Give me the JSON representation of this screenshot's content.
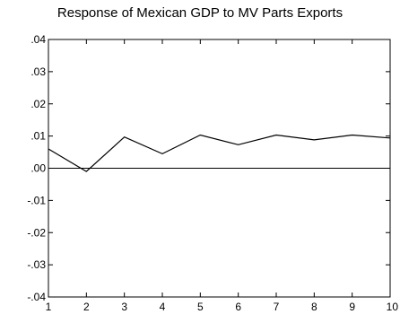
{
  "chart_data": {
    "type": "line",
    "title": "Response of Mexican GDP to MV Parts Exports",
    "xlabel": "",
    "ylabel": "",
    "x": [
      1,
      2,
      3,
      4,
      5,
      6,
      7,
      8,
      9,
      10
    ],
    "series": [
      {
        "values": [
          0.006,
          -0.001,
          0.0097,
          0.0045,
          0.0103,
          0.0073,
          0.0103,
          0.0088,
          0.0103,
          0.0094
        ]
      }
    ],
    "xlim": [
      1,
      10
    ],
    "ylim": [
      -0.04,
      0.04
    ],
    "xticks": [
      "1",
      "2",
      "3",
      "4",
      "5",
      "6",
      "7",
      "8",
      "9",
      "10"
    ],
    "yticks": [
      -0.04,
      -0.03,
      -0.02,
      -0.01,
      0.0,
      0.01,
      0.02,
      0.03,
      0.04
    ],
    "ytick_labels": [
      "-.04",
      "-.03",
      "-.02",
      "-.01",
      ".00",
      ".01",
      ".02",
      ".03",
      ".04"
    ],
    "zero_line": true,
    "grid": false,
    "legend": "none",
    "colors": {
      "line": "#000000",
      "axis": "#000000"
    }
  }
}
